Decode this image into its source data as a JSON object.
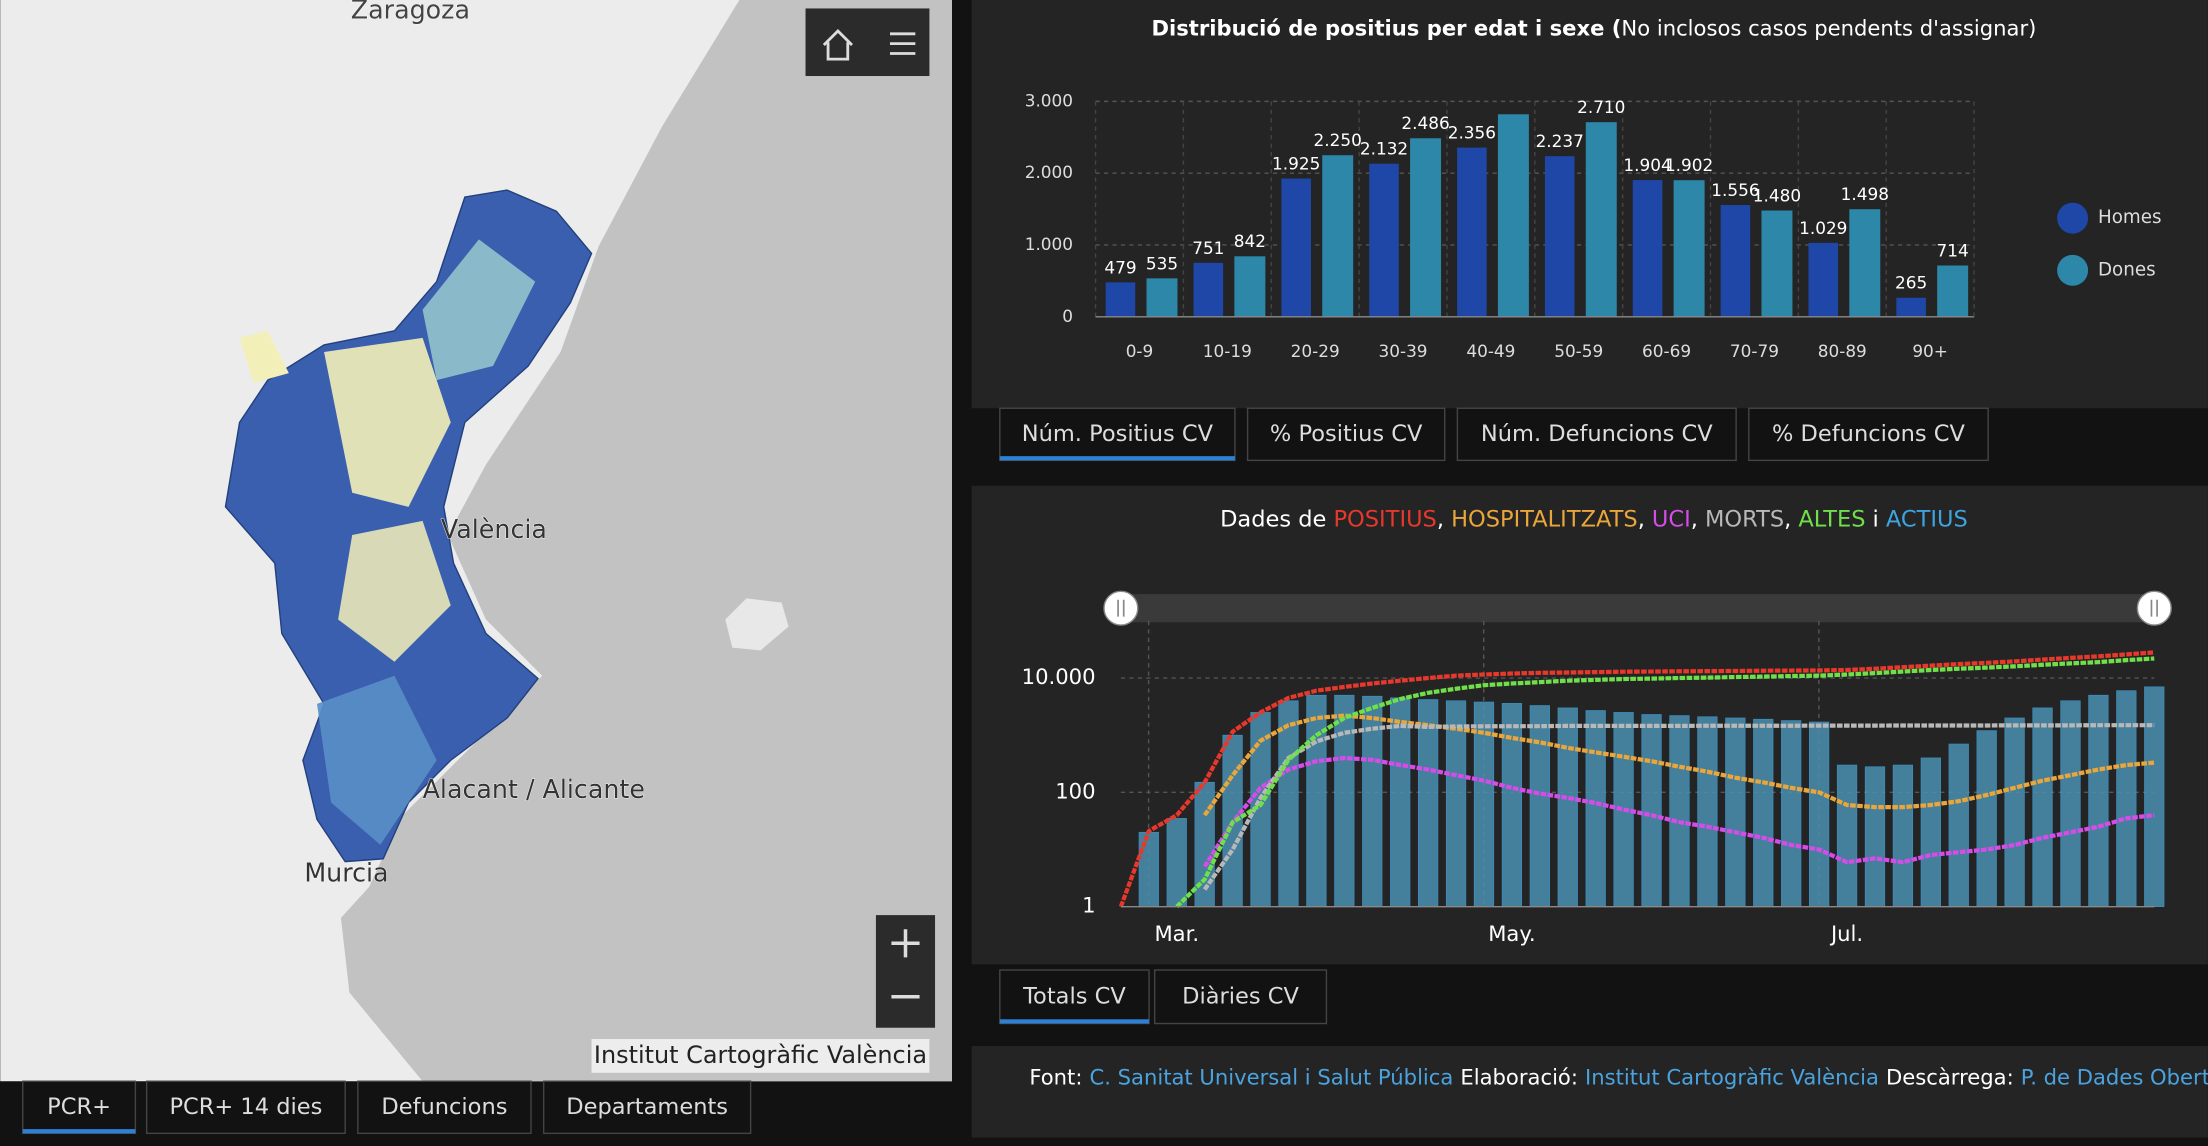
{
  "map": {
    "labels": [
      "Zaragoza",
      "València",
      "Alacant / Alicante",
      "Murcia"
    ],
    "attribution": "Institut Cartogràfic València",
    "tabs": [
      "PCR+",
      "PCR+ 14 dies",
      "Defuncions",
      "Departaments"
    ]
  },
  "chart_data": [
    {
      "type": "bar",
      "title": "Distribució de positius per edat i sexe (",
      "subtitle": "No inclosos casos pendents d'assignar)",
      "categories": [
        "0-9",
        "10-19",
        "20-29",
        "30-39",
        "40-49",
        "50-59",
        "60-69",
        "70-79",
        "80-89",
        "90+"
      ],
      "series": [
        {
          "name": "Homes",
          "color": "#1e47a8",
          "values": [
            479,
            751,
            1925,
            2132,
            2356,
            2237,
            1904,
            1556,
            1029,
            265
          ],
          "value_labels": [
            "479",
            "751",
            "1.925",
            "2.132",
            "2.356",
            "2.237",
            "1.904",
            "1.556",
            "1.029",
            "265"
          ]
        },
        {
          "name": "Dones",
          "color": "#2d87a9",
          "values": [
            535,
            842,
            2250,
            2486,
            2820,
            2710,
            1902,
            1480,
            1498,
            714
          ],
          "value_labels": [
            "535",
            "842",
            "2.250",
            "2.486",
            null,
            "2.710",
            "1.902",
            "1.480",
            "1.498",
            "714"
          ]
        }
      ],
      "ylim": [
        0,
        3000
      ],
      "yticks": [
        0,
        {
          "value": 1000,
          "label": "1.000"
        },
        {
          "value": 2000,
          "label": "2.000"
        },
        {
          "value": 3000,
          "label": "3.000"
        }
      ],
      "grid": true,
      "legend": "right",
      "tabs": [
        "Núm. Positius CV",
        "% Positius CV",
        "Núm. Defuncions CV",
        "% Defuncions CV"
      ]
    },
    {
      "type": "line",
      "title_prefix": "Dades de",
      "title_separators": [
        ",",
        ",",
        ",",
        ",",
        "i"
      ],
      "log": true,
      "grid": true,
      "categories": [
        null,
        null,
        "Mar.",
        null,
        null,
        null,
        null,
        null,
        null,
        null,
        null,
        null,
        null,
        null,
        "May.",
        null,
        null,
        null,
        null,
        null,
        null,
        null,
        null,
        null,
        null,
        null,
        "Jul.",
        null,
        null,
        null,
        null,
        null,
        null,
        null,
        null,
        null,
        null,
        null
      ],
      "series": [
        {
          "name": "POSITIUS",
          "color": "#e8382c",
          "kind": "line",
          "values": [
            1,
            21,
            40,
            150,
            1150,
            2500,
            4500,
            6000,
            7000,
            8000,
            9000,
            10000,
            11000,
            11500,
            12000,
            12300,
            12500,
            12700,
            12900,
            13000,
            13100,
            13200,
            13300,
            13400,
            13500,
            13600,
            13800,
            14500,
            15500,
            16500,
            17500,
            18500,
            19500,
            21000,
            22500,
            24000,
            26000,
            28000
          ]
        },
        {
          "name": "HOSPITALITZATS",
          "color": "#eaa63a",
          "kind": "line",
          "values": [
            null,
            null,
            null,
            40,
            200,
            800,
            1500,
            2000,
            2200,
            2000,
            1700,
            1500,
            1300,
            1100,
            900,
            750,
            600,
            500,
            420,
            350,
            280,
            230,
            180,
            150,
            120,
            100,
            60,
            55,
            55,
            60,
            70,
            90,
            120,
            160,
            200,
            250,
            300,
            330
          ]
        },
        {
          "name": "UCI",
          "color": "#d64ce8",
          "kind": "line",
          "values": [
            null,
            null,
            null,
            5,
            30,
            120,
            250,
            350,
            400,
            370,
            300,
            250,
            200,
            160,
            120,
            95,
            80,
            65,
            50,
            40,
            30,
            25,
            20,
            16,
            12,
            10,
            6,
            7,
            6,
            8,
            9,
            10,
            12,
            16,
            20,
            25,
            35,
            40
          ]
        },
        {
          "name": "MORTS",
          "color": "#b8b8b8",
          "kind": "line",
          "values": [
            null,
            null,
            null,
            2,
            10,
            80,
            400,
            780,
            1100,
            1300,
            1450,
            1400,
            1420,
            1430,
            1440,
            1440,
            1450,
            1450,
            1450,
            1450,
            1450,
            1460,
            1460,
            1460,
            1460,
            1470,
            1470,
            1470,
            1480,
            1480,
            1480,
            1480,
            1490,
            1490,
            1490,
            1500,
            1500,
            1500
          ]
        },
        {
          "name": "ALTES",
          "color": "#6fe04a",
          "kind": "line",
          "values": [
            null,
            null,
            1,
            3,
            30,
            60,
            370,
            1000,
            2000,
            3000,
            4300,
            5500,
            6500,
            7500,
            8000,
            8500,
            9000,
            9300,
            9600,
            9800,
            10000,
            10200,
            10400,
            10600,
            10800,
            11000,
            11500,
            12200,
            13000,
            13800,
            14500,
            15200,
            16000,
            17000,
            18000,
            19000,
            20500,
            22000
          ]
        },
        {
          "name": "ACTIUS",
          "color": "#3ea3e0",
          "kind": "bar",
          "values": [
            1,
            20,
            35,
            150,
            1000,
            2500,
            4000,
            5000,
            5000,
            4800,
            4500,
            4200,
            4000,
            3800,
            3600,
            3300,
            3000,
            2700,
            2500,
            2300,
            2200,
            2100,
            2000,
            1900,
            1800,
            1700,
            300,
            280,
            300,
            400,
            700,
            1200,
            2000,
            3000,
            4000,
            5000,
            6000,
            7000
          ]
        }
      ],
      "ylim": [
        1,
        100000
      ],
      "yticks": [
        1,
        100,
        {
          "value": 10000,
          "label": "10.000"
        }
      ],
      "tabs": [
        "Totals CV",
        "Diàries CV"
      ]
    }
  ],
  "footer": {
    "items": [
      {
        "label": "Font:",
        "value": "C. Sanitat Universal i Salut Pública"
      },
      {
        "label": "Elaboració:",
        "value": "Institut Cartogràfic València"
      },
      {
        "label": "Descàrrega:",
        "value": "P. de Dades Obertes"
      }
    ]
  }
}
